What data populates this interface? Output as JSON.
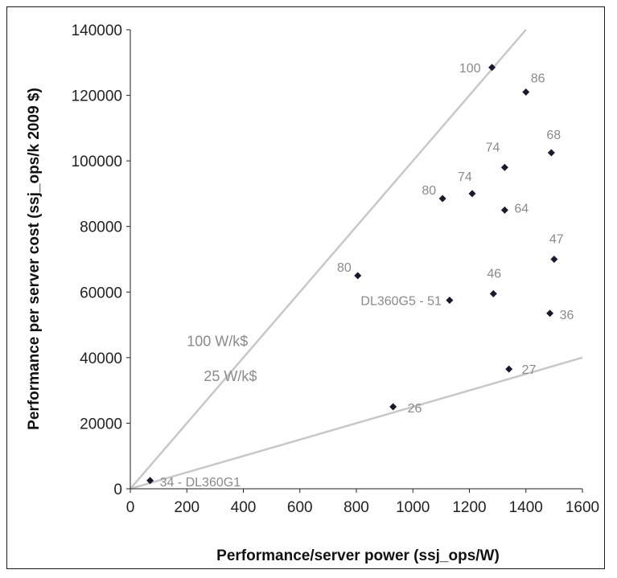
{
  "chart_data": {
    "type": "scatter",
    "title": "",
    "xlabel": "Performance/server power (ssj_ops/W)",
    "ylabel": "Performance per server cost (ssj_ops/k 2009 $)",
    "xlim": [
      0,
      1600
    ],
    "ylim": [
      0,
      140000
    ],
    "x_ticks": [
      "0",
      "200",
      "400",
      "600",
      "800",
      "1000",
      "1200",
      "1400",
      "1600"
    ],
    "y_ticks": [
      "0",
      "20000",
      "40000",
      "60000",
      "80000",
      "100000",
      "120000",
      "140000"
    ],
    "grid": false,
    "points": [
      {
        "x": 70,
        "y": 2500,
        "label": "34 - DL360G1"
      },
      {
        "x": 930,
        "y": 25000,
        "label": "26"
      },
      {
        "x": 1340,
        "y": 36500,
        "label": "27"
      },
      {
        "x": 805,
        "y": 65000,
        "label": "80"
      },
      {
        "x": 1130,
        "y": 57500,
        "label": "DL360G5 - 51"
      },
      {
        "x": 1285,
        "y": 59500,
        "label": "46"
      },
      {
        "x": 1485,
        "y": 53500,
        "label": "36"
      },
      {
        "x": 1500,
        "y": 70000,
        "label": "47"
      },
      {
        "x": 1105,
        "y": 88500,
        "label": "80"
      },
      {
        "x": 1210,
        "y": 90000,
        "label": "74"
      },
      {
        "x": 1325,
        "y": 85000,
        "label": "64"
      },
      {
        "x": 1325,
        "y": 98000,
        "label": "74"
      },
      {
        "x": 1490,
        "y": 102500,
        "label": "68"
      },
      {
        "x": 1400,
        "y": 121000,
        "label": "86"
      },
      {
        "x": 1280,
        "y": 128500,
        "label": "100"
      }
    ],
    "reference_lines": [
      {
        "label": "100 W/k$",
        "from": [
          0,
          0
        ],
        "to": [
          1400,
          140000
        ]
      },
      {
        "label": "25 W/k$",
        "from": [
          0,
          0
        ],
        "to": [
          1600,
          40000
        ]
      }
    ]
  }
}
